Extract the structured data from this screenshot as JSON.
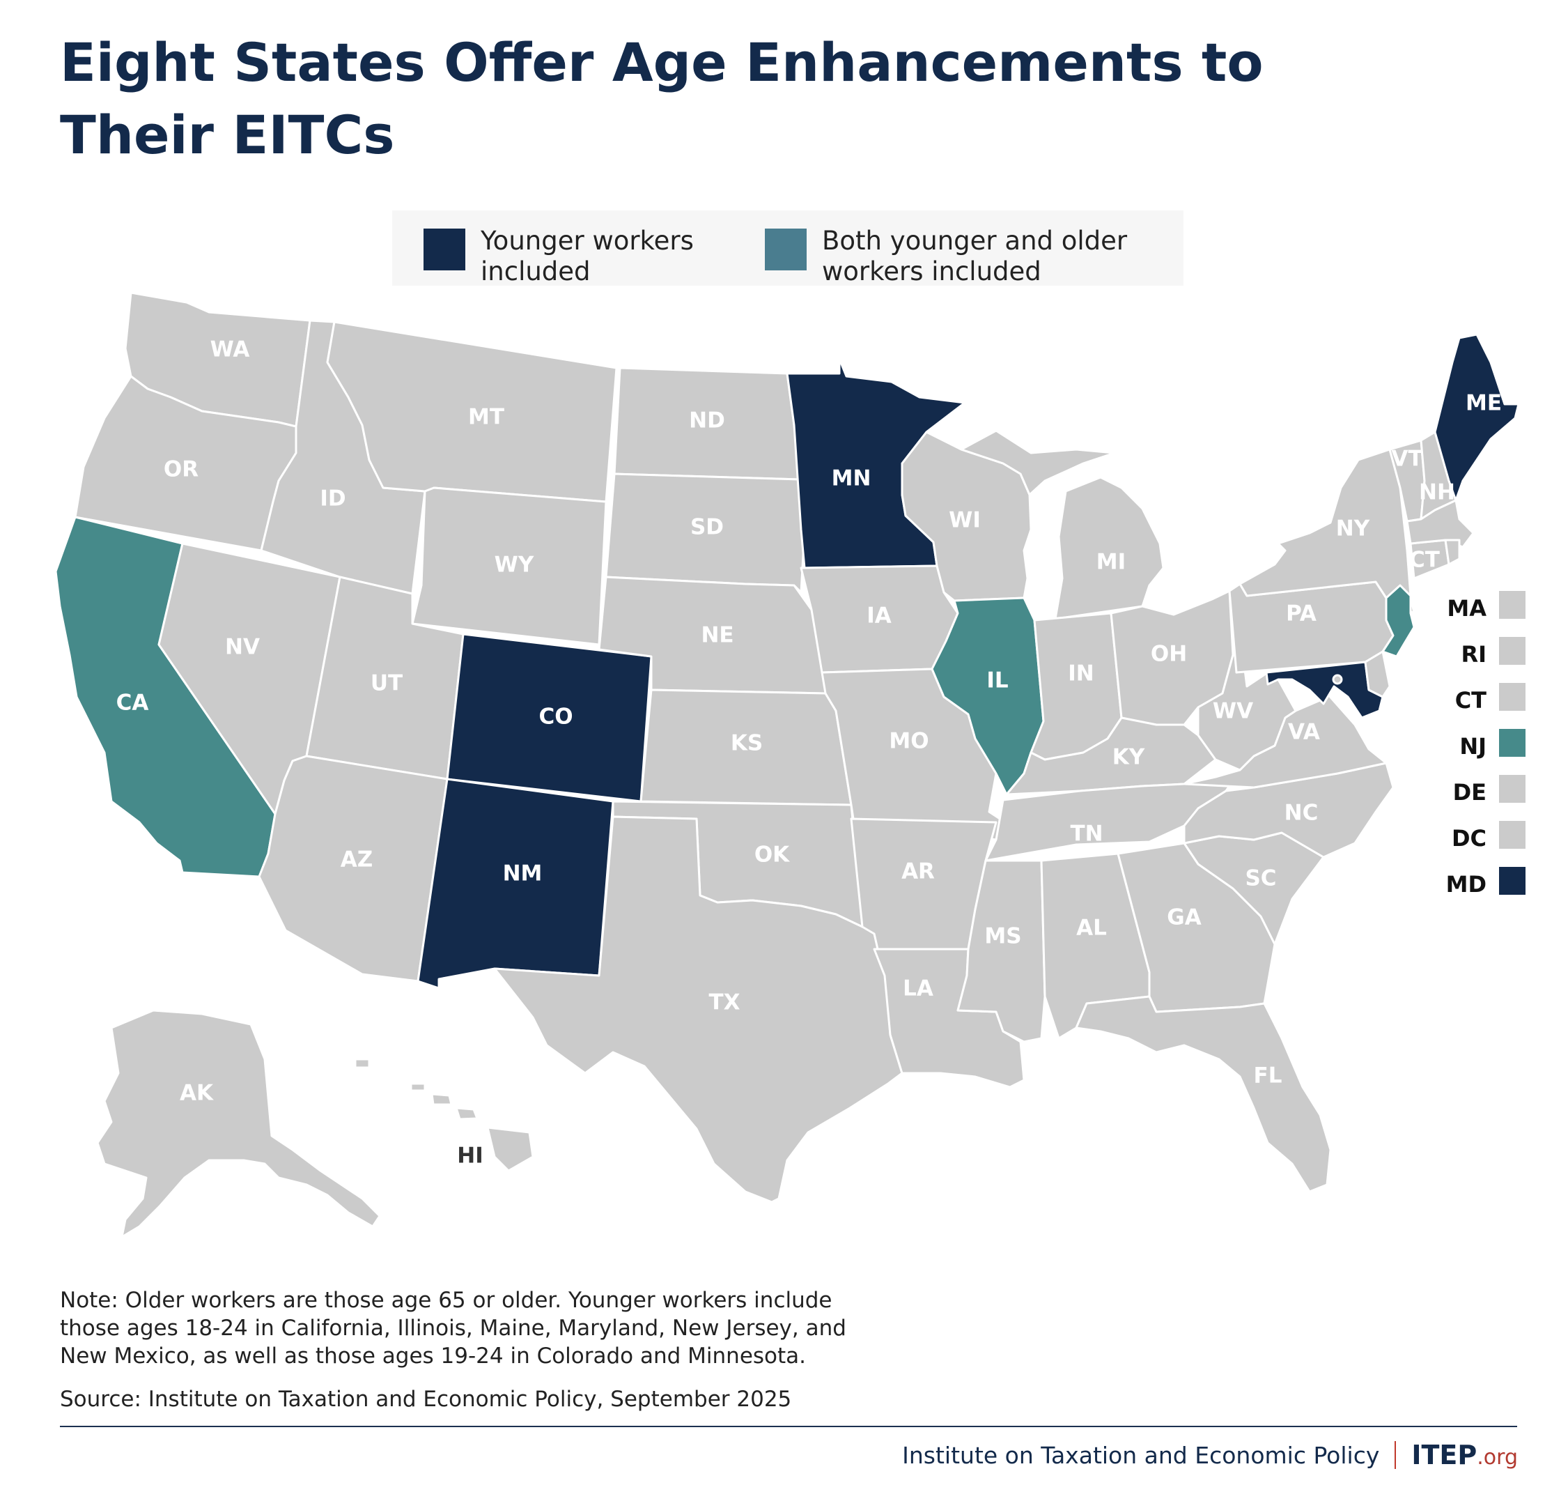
{
  "title": "Eight States Offer Age Enhancements to Their EITCs",
  "legend": [
    {
      "label": "Younger workers\nincluded",
      "color": "#132a4b"
    },
    {
      "label": "Both younger and older\nworkers included",
      "color": "#4a7d8f"
    }
  ],
  "colors": {
    "none": "#cbcbcb",
    "younger": "#132a4b",
    "both": "#468a8a",
    "label_light": "#ffffff",
    "label_dark": "#333333"
  },
  "states": [
    {
      "abbr": "WA",
      "category": "none"
    },
    {
      "abbr": "OR",
      "category": "none"
    },
    {
      "abbr": "CA",
      "category": "both"
    },
    {
      "abbr": "NV",
      "category": "none"
    },
    {
      "abbr": "ID",
      "category": "none"
    },
    {
      "abbr": "MT",
      "category": "none"
    },
    {
      "abbr": "WY",
      "category": "none"
    },
    {
      "abbr": "UT",
      "category": "none"
    },
    {
      "abbr": "AZ",
      "category": "none"
    },
    {
      "abbr": "CO",
      "category": "younger"
    },
    {
      "abbr": "NM",
      "category": "younger"
    },
    {
      "abbr": "ND",
      "category": "none"
    },
    {
      "abbr": "SD",
      "category": "none"
    },
    {
      "abbr": "NE",
      "category": "none"
    },
    {
      "abbr": "KS",
      "category": "none"
    },
    {
      "abbr": "OK",
      "category": "none"
    },
    {
      "abbr": "TX",
      "category": "none"
    },
    {
      "abbr": "MN",
      "category": "younger"
    },
    {
      "abbr": "IA",
      "category": "none"
    },
    {
      "abbr": "MO",
      "category": "none"
    },
    {
      "abbr": "AR",
      "category": "none"
    },
    {
      "abbr": "LA",
      "category": "none"
    },
    {
      "abbr": "WI",
      "category": "none"
    },
    {
      "abbr": "IL",
      "category": "both"
    },
    {
      "abbr": "MI",
      "category": "none"
    },
    {
      "abbr": "IN",
      "category": "none"
    },
    {
      "abbr": "OH",
      "category": "none"
    },
    {
      "abbr": "KY",
      "category": "none"
    },
    {
      "abbr": "TN",
      "category": "none"
    },
    {
      "abbr": "MS",
      "category": "none"
    },
    {
      "abbr": "AL",
      "category": "none"
    },
    {
      "abbr": "GA",
      "category": "none"
    },
    {
      "abbr": "FL",
      "category": "none"
    },
    {
      "abbr": "SC",
      "category": "none"
    },
    {
      "abbr": "NC",
      "category": "none"
    },
    {
      "abbr": "VA",
      "category": "none"
    },
    {
      "abbr": "WV",
      "category": "none"
    },
    {
      "abbr": "PA",
      "category": "none"
    },
    {
      "abbr": "NY",
      "category": "none"
    },
    {
      "abbr": "VT",
      "category": "none"
    },
    {
      "abbr": "NH",
      "category": "none"
    },
    {
      "abbr": "ME",
      "category": "younger"
    },
    {
      "abbr": "CT",
      "category": "none"
    },
    {
      "abbr": "NJ",
      "category": "both"
    },
    {
      "abbr": "MD",
      "category": "younger"
    },
    {
      "abbr": "AK",
      "category": "none"
    },
    {
      "abbr": "HI",
      "category": "none"
    }
  ],
  "small_states": [
    {
      "abbr": "MA",
      "category": "none"
    },
    {
      "abbr": "RI",
      "category": "none"
    },
    {
      "abbr": "CT",
      "category": "none"
    },
    {
      "abbr": "NJ",
      "category": "both"
    },
    {
      "abbr": "DE",
      "category": "none"
    },
    {
      "abbr": "DC",
      "category": "none"
    },
    {
      "abbr": "MD",
      "category": "younger"
    }
  ],
  "note": "Note: Older workers are those age 65 or older. Younger workers include those ages 18-24 in California, Illinois, Maine, Maryland, New Jersey, and New Mexico, as well as those ages 19-24 in Colorado and Minnesota.",
  "source": "Source: Institute on Taxation and Economic Policy, September 2025",
  "footer": {
    "org": "Institute on Taxation and Economic Policy",
    "logo": "ITEP",
    "logo_ext": ".org"
  }
}
